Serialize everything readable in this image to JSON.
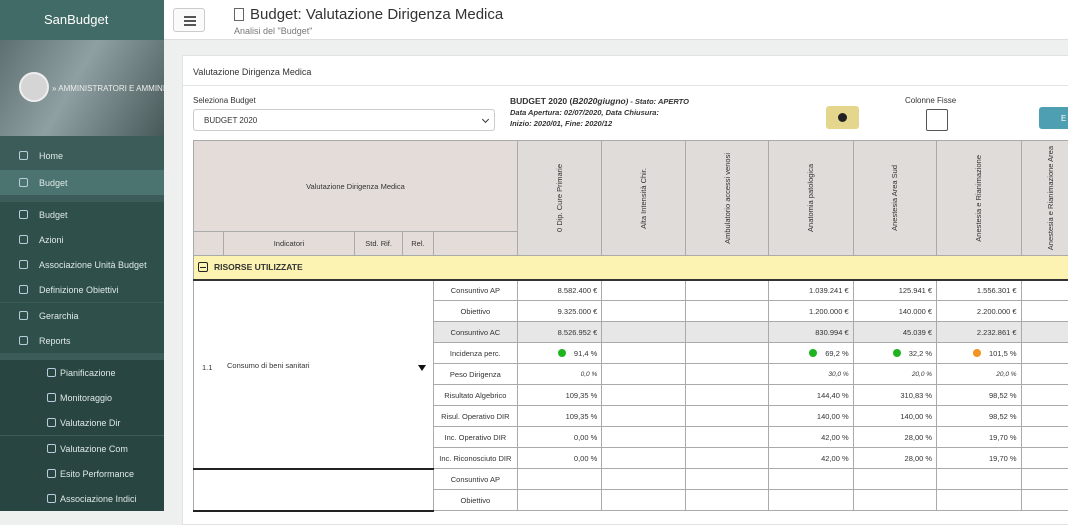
{
  "sidebar": {
    "brand": "SanBudget",
    "user_role": "» AMMINISTRATORI E AMMINIS",
    "menu": [
      {
        "label": "Home",
        "level": 0
      },
      {
        "label": "Budget",
        "level": 0
      },
      {
        "label": "Budget",
        "level": 1
      },
      {
        "label": "Azioni",
        "level": 1
      },
      {
        "label": "Associazione Unità Budget",
        "level": 1
      },
      {
        "label": "Definizione Obiettivi",
        "level": 1
      },
      {
        "label": "Gerarchia",
        "level": 1
      },
      {
        "label": "Reports",
        "level": 1
      },
      {
        "label": "Pianificazione",
        "level": 2
      },
      {
        "label": "Monitoraggio",
        "level": 2
      },
      {
        "label": "Valutazione Dir",
        "level": 2
      },
      {
        "label": "Valutazione Com",
        "level": 2
      },
      {
        "label": "Esito Performance",
        "level": 2
      },
      {
        "label": "Associazione Indici",
        "level": 2
      }
    ]
  },
  "header": {
    "title": "Budget: Valutazione Dirigenza Medica",
    "subtitle": "Analisi del \"Budget\""
  },
  "panel": {
    "title": "Valutazione Dirigenza Medica",
    "select_label": "Seleziona Budget",
    "select_value": "BUDGET 2020",
    "budget_name": "BUDGET 2020 (",
    "budget_code": "B2020giugno",
    "budget_state": ") - Stato: APERTO",
    "dates": "Data Apertura: 02/07/2020, Data Chiusura:",
    "period": "Inizio: 2020/01, Fine: 2020/12",
    "fixed_columns_label": "Colonne Fisse",
    "export_button": "E"
  },
  "table": {
    "title": "Valutazione Dirigenza Medica",
    "headers": [
      "Indicatori",
      "Std. Rif.",
      "Rel."
    ],
    "columns": [
      "0 Dip. Cure Primarie",
      "Alta Intensità Chir.",
      "Ambulatorio accessi venosi",
      "Anatomia patologica",
      "Anestesia Area Sud",
      "Anestesia e Rianimazione",
      "Anestesia e Rianimazione Area"
    ],
    "section": "RISORSE UTILIZZATE",
    "groups": [
      {
        "number": "1.1",
        "label": "Consumo di beni sanitari",
        "rows": [
          {
            "label": "Consuntivo AP",
            "cells": [
              "8.582.400 €",
              null,
              null,
              "1.039.241 €",
              "125.941 €",
              "1.556.301 €",
              null
            ]
          },
          {
            "label": "Obiettivo",
            "cells": [
              "9.325.000 €",
              null,
              null,
              "1.200.000 €",
              "140.000 €",
              "2.200.000 €",
              null
            ]
          },
          {
            "label": "Consuntivo AC",
            "cells": [
              "8.526.952 €",
              null,
              null,
              "830.994 €",
              "45.039 €",
              "2.232.861 €",
              null
            ]
          },
          {
            "label": "Incidenza perc.",
            "cells": [
              {
                "text": "91,4 %",
                "color": "#1fb41f"
              },
              null,
              null,
              {
                "text": "69,2 %",
                "color": "#1fb41f"
              },
              {
                "text": "32,2 %",
                "color": "#1fb41f"
              },
              {
                "text": "101,5 %",
                "color": "#f39321"
              },
              null
            ]
          },
          {
            "label": "Peso Dirigenza",
            "cells": [
              "0,0 %",
              null,
              null,
              "30,0 %",
              "20,0 %",
              "20,0 %",
              null
            ]
          },
          {
            "label": "Risultato Algebrico",
            "cells": [
              "109,35 %",
              null,
              null,
              "144,40 %",
              "310,83 %",
              "98,52 %",
              null
            ]
          },
          {
            "label": "Risul. Operativo DIR",
            "cells": [
              "109,35 %",
              null,
              null,
              "140,00 %",
              "140,00 %",
              "98,52 %",
              null
            ]
          },
          {
            "label": "Inc. Operativo DIR",
            "cells": [
              "0,00 %",
              null,
              null,
              "42,00 %",
              "28,00 %",
              "19,70 %",
              null
            ]
          },
          {
            "label": "Inc. Riconosciuto DIR",
            "cells": [
              "0,00 %",
              null,
              null,
              "42,00 %",
              "28,00 %",
              "19,70 %",
              null
            ]
          }
        ]
      },
      {
        "rows": [
          {
            "label": "Consuntivo AP",
            "cells": [
              null,
              null,
              null,
              null,
              null,
              null,
              null
            ]
          },
          {
            "label": "Obiettivo",
            "cells": [
              null,
              null,
              null,
              null,
              null,
              null,
              null
            ]
          }
        ]
      }
    ]
  }
}
